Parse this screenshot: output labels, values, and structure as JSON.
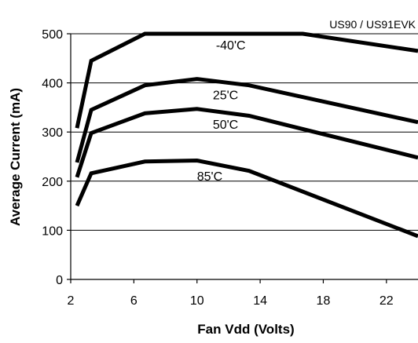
{
  "chart_data": {
    "type": "line",
    "corner_label": "US90 / US91EVK",
    "xlabel": "Fan Vdd (Volts)",
    "ylabel": "Average Current (mA)",
    "xlim": [
      2,
      24
    ],
    "ylim": [
      0,
      500
    ],
    "x_ticks": [
      2,
      6,
      10,
      14,
      18,
      22
    ],
    "y_ticks": [
      0,
      100,
      200,
      300,
      400,
      500
    ],
    "grid": "horizontal",
    "colors": {
      "line": "#000000",
      "grid": "#000000",
      "background": "#ffffff"
    },
    "series": [
      {
        "name": "-40'C",
        "x": [
          2.4,
          3.3,
          6.7,
          10,
          13.3,
          16.7,
          24
        ],
        "y": [
          308,
          445,
          500,
          500,
          500,
          500,
          465
        ]
      },
      {
        "name": "25'C",
        "x": [
          2.4,
          3.3,
          6.7,
          10,
          13.3,
          24
        ],
        "y": [
          238,
          345,
          395,
          408,
          395,
          320
        ]
      },
      {
        "name": "50'C",
        "x": [
          2.4,
          3.3,
          6.7,
          10,
          13.3,
          24
        ],
        "y": [
          208,
          298,
          338,
          347,
          333,
          248
        ]
      },
      {
        "name": "85'C",
        "x": [
          2.4,
          3.3,
          6.7,
          10,
          13.3,
          24
        ],
        "y": [
          150,
          216,
          240,
          242,
          221,
          88
        ]
      }
    ],
    "annotations": [
      {
        "series_index": 0,
        "text": "-40'C",
        "x": 11.2,
        "y": 468
      },
      {
        "series_index": 1,
        "text": "25'C",
        "x": 11.0,
        "y": 367
      },
      {
        "series_index": 2,
        "text": "50'C",
        "x": 11.0,
        "y": 307
      },
      {
        "series_index": 3,
        "text": "85'C",
        "x": 10.0,
        "y": 201
      }
    ]
  }
}
